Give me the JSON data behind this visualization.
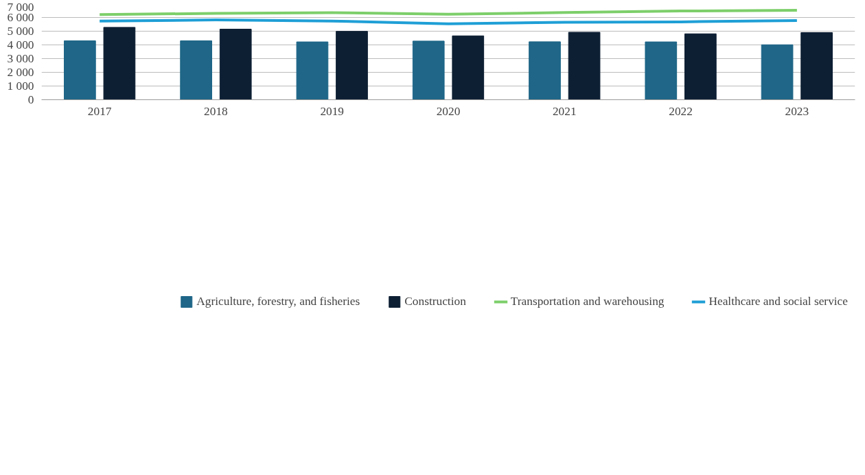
{
  "chart_data": {
    "type": "bar",
    "categories": [
      "2017",
      "2018",
      "2019",
      "2020",
      "2021",
      "2022",
      "2023"
    ],
    "series": [
      {
        "name": "Agriculture, forestry, and fisheries",
        "color": "#1f6688",
        "values": [
          4300,
          4300,
          4220,
          4280,
          4230,
          4220,
          4010
        ]
      },
      {
        "name": "Construction",
        "color": "#0d1f33",
        "values": [
          5280,
          5150,
          4990,
          4660,
          4920,
          4810,
          4900
        ]
      },
      {
        "name": "Transportation and warehousing",
        "type": "line",
        "color": "#7dcf6a",
        "values": [
          6210,
          6300,
          6350,
          6240,
          6360,
          6470,
          6520
        ]
      },
      {
        "name": "Healthcare and social service",
        "type": "line",
        "color": "#1f9fd6",
        "values": [
          5740,
          5820,
          5740,
          5540,
          5650,
          5680,
          5780
        ]
      }
    ],
    "ylim": [
      0,
      7000
    ],
    "yticks": [
      {
        "value": 0,
        "label": "0"
      },
      {
        "value": 1000,
        "label": "1 000"
      },
      {
        "value": 2000,
        "label": "2 000"
      },
      {
        "value": 3000,
        "label": "3 000"
      },
      {
        "value": 4000,
        "label": "4 000"
      },
      {
        "value": 5000,
        "label": "5 000"
      },
      {
        "value": 6000,
        "label": "6 000"
      },
      {
        "value": 7000,
        "label": "7 000"
      }
    ],
    "grid": "y",
    "legend": "bottom"
  }
}
